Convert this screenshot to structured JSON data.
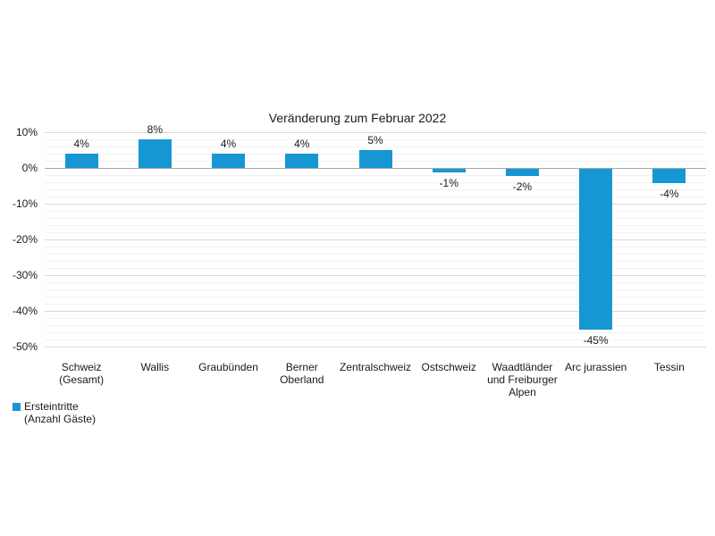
{
  "title": "Veränderung zum Februar 2022",
  "legend": {
    "lines": [
      "Ersteintritte",
      "(Anzahl Gäste)"
    ],
    "series_name": "Ersteintritte (Anzahl Gäste)"
  },
  "colors": {
    "bar": "#1697D4",
    "major_grid": "#D9D9D9",
    "minor_grid": "#F2F2F2",
    "zero_line": "#A6A6A6",
    "text": "#1A1A1A",
    "background": "#FFFFFF"
  },
  "chart_data": {
    "type": "bar",
    "title": "Veränderung zum Februar 2022",
    "series_name": "Ersteintritte (Anzahl Gäste)",
    "categories": [
      "Schweiz (Gesamt)",
      "Wallis",
      "Graubünden",
      "Berner Oberland",
      "Zentralschweiz",
      "Ostschweiz",
      "Waadtländer und Freiburger Alpen",
      "Arc jurassien",
      "Tessin"
    ],
    "category_label_lines": [
      [
        "Schweiz",
        "(Gesamt)"
      ],
      [
        "Wallis"
      ],
      [
        "Graubünden"
      ],
      [
        "Berner",
        "Oberland"
      ],
      [
        "Zentralschweiz"
      ],
      [
        "Ostschweiz"
      ],
      [
        "Waadtländer",
        "und Freiburger",
        "Alpen"
      ],
      [
        "Arc jurassien"
      ],
      [
        "Tessin"
      ]
    ],
    "values": [
      4,
      8,
      4,
      4,
      5,
      -1,
      -2,
      -45,
      -4
    ],
    "value_labels": [
      "4%",
      "8%",
      "4%",
      "4%",
      "5%",
      "-1%",
      "-2%",
      "-45%",
      "-4%"
    ],
    "ylabel": "",
    "xlabel": "",
    "ylim": [
      -50,
      10
    ],
    "y_ticks": [
      "10%",
      "0%",
      "-10%",
      "-20%",
      "-30%",
      "-40%",
      "-50%"
    ],
    "y_tick_values": [
      10,
      0,
      -10,
      -20,
      -30,
      -40,
      -50
    ],
    "minor_grid_step": 2,
    "grid": true,
    "bar_color": "#1697D4",
    "legend_position": "bottom-left"
  }
}
